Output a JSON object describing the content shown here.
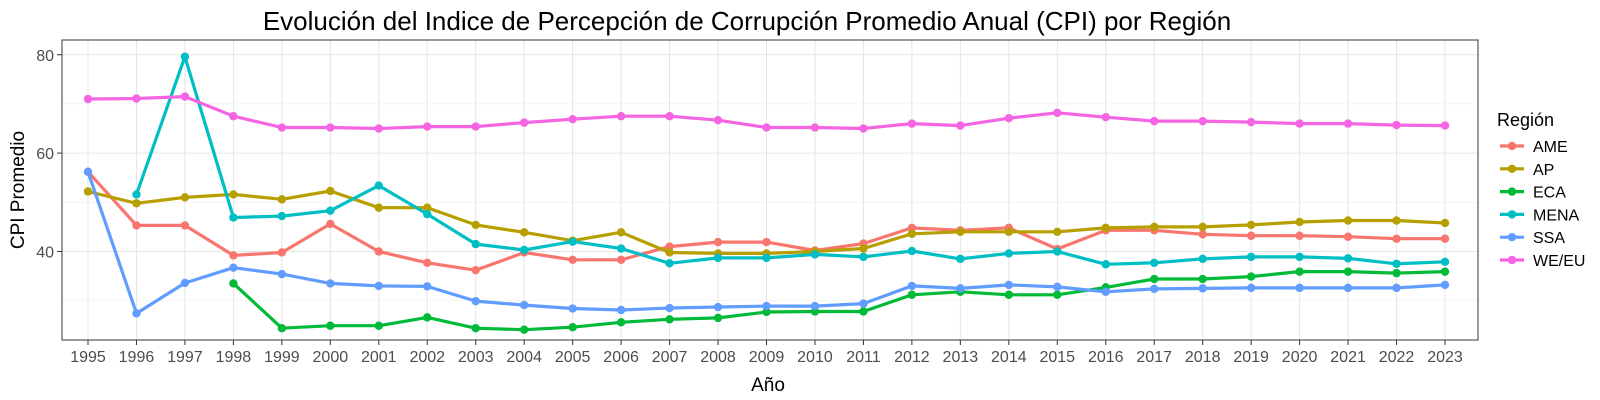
{
  "chart_data": {
    "type": "line",
    "title": "Evolución del Indice de Percepción de Corrupción Promedio Anual (CPI) por Región",
    "xlabel": "Año",
    "ylabel": "CPI Promedio",
    "x": [
      1995,
      1996,
      1997,
      1998,
      1999,
      2000,
      2001,
      2002,
      2003,
      2004,
      2005,
      2006,
      2007,
      2008,
      2009,
      2010,
      2011,
      2012,
      2013,
      2014,
      2015,
      2016,
      2017,
      2018,
      2019,
      2020,
      2021,
      2022,
      2023
    ],
    "y_ticks": [
      40,
      60,
      80
    ],
    "ylim": [
      22,
      83
    ],
    "grid": true,
    "legend_title": "Región",
    "legend_position": "right",
    "series": [
      {
        "name": "AME",
        "color": "#F8766D",
        "values": [
          56.2,
          45.3,
          45.3,
          39.2,
          39.8,
          45.6,
          40.0,
          37.7,
          36.2,
          39.8,
          38.3,
          38.3,
          41.0,
          41.9,
          41.9,
          40.2,
          41.6,
          44.8,
          44.3,
          44.8,
          40.5,
          44.3,
          44.3,
          43.5,
          43.2,
          43.2,
          43.0,
          42.6,
          42.6
        ]
      },
      {
        "name": "AP",
        "color": "#B79F00",
        "values": [
          52.2,
          49.8,
          51.0,
          51.6,
          50.6,
          52.3,
          48.9,
          48.9,
          45.4,
          43.9,
          42.2,
          43.9,
          39.8,
          39.6,
          39.6,
          40.0,
          40.6,
          43.6,
          44.0,
          44.0,
          44.0,
          44.8,
          45.0,
          45.0,
          45.4,
          46.0,
          46.3,
          46.3,
          45.8
        ]
      },
      {
        "name": "ECA",
        "color": "#00BA38",
        "values": [
          null,
          null,
          null,
          33.5,
          24.4,
          24.9,
          24.9,
          26.6,
          24.4,
          24.1,
          24.6,
          25.6,
          26.2,
          26.5,
          27.7,
          27.8,
          27.8,
          31.2,
          31.8,
          31.2,
          31.2,
          32.7,
          34.4,
          34.4,
          34.9,
          35.9,
          35.9,
          35.6,
          35.9
        ]
      },
      {
        "name": "MENA",
        "color": "#00BFC4",
        "values": [
          null,
          51.6,
          79.6,
          46.9,
          47.2,
          48.3,
          53.4,
          47.6,
          41.5,
          40.3,
          42.0,
          40.6,
          37.6,
          38.7,
          38.7,
          39.4,
          38.9,
          40.1,
          38.5,
          39.6,
          40.0,
          37.4,
          37.7,
          38.5,
          38.9,
          38.9,
          38.6,
          37.5,
          37.9
        ]
      },
      {
        "name": "SSA",
        "color": "#619CFF",
        "values": [
          56.2,
          27.4,
          33.6,
          36.7,
          35.4,
          33.5,
          33.0,
          32.9,
          29.9,
          29.1,
          28.4,
          28.1,
          28.5,
          28.7,
          28.9,
          28.9,
          29.4,
          33.0,
          32.5,
          33.2,
          32.8,
          31.8,
          32.4,
          32.5,
          32.6,
          32.6,
          32.6,
          32.6,
          33.2
        ]
      },
      {
        "name": "WE/EU",
        "color": "#F564E3",
        "values": [
          71.0,
          71.1,
          71.5,
          67.5,
          65.2,
          65.2,
          65.0,
          65.4,
          65.4,
          66.2,
          66.9,
          67.5,
          67.5,
          66.7,
          65.2,
          65.2,
          65.0,
          66.0,
          65.6,
          67.1,
          68.2,
          67.3,
          66.5,
          66.5,
          66.3,
          66.0,
          66.0,
          65.7,
          65.6
        ]
      }
    ]
  }
}
